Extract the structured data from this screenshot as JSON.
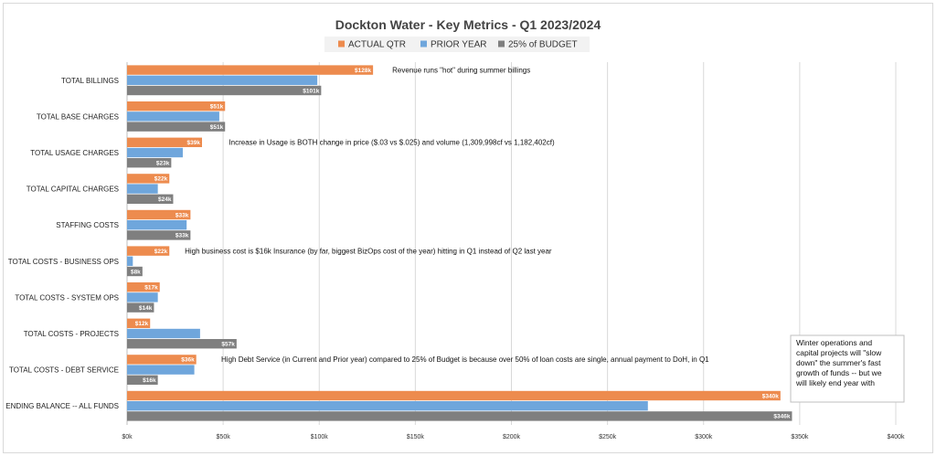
{
  "chart_data": {
    "type": "bar",
    "orientation": "horizontal",
    "title": "Dockton Water - Key Metrics - Q1 2023/2024",
    "legend_position": "top",
    "categories": [
      "TOTAL BILLINGS",
      "TOTAL BASE CHARGES",
      "TOTAL USAGE CHARGES",
      "TOTAL CAPITAL CHARGES",
      "STAFFING COSTS",
      "TOTAL COSTS - BUSINESS OPS",
      "TOTAL COSTS - SYSTEM OPS",
      "TOTAL COSTS - PROJECTS",
      "TOTAL COSTS - DEBT SERVICE",
      "ENDING BALANCE -- ALL FUNDS"
    ],
    "series": [
      {
        "name": "ACTUAL QTR",
        "color": "#ED8B4E",
        "values": [
          128000,
          51000,
          39000,
          22000,
          33000,
          22000,
          17000,
          12000,
          36000,
          340000
        ],
        "labels": [
          "$128k",
          "$51k",
          "$39k",
          "$22k",
          "$33k",
          "$22k",
          "$17k",
          "$12k",
          "$36k",
          "$340k"
        ]
      },
      {
        "name": "PRIOR YEAR",
        "color": "#6FA6DC",
        "values": [
          99000,
          48000,
          29000,
          16000,
          31000,
          3000,
          16000,
          38000,
          35000,
          271000
        ],
        "labels": []
      },
      {
        "name": "25% of BUDGET",
        "color": "#7F7F7F",
        "values": [
          101000,
          51000,
          23000,
          24000,
          33000,
          8000,
          14000,
          57000,
          16000,
          346000
        ],
        "labels": [
          "$101k",
          "$51k",
          "$23k",
          "$24k",
          "$33k",
          "$8k",
          "$14k",
          "$57k",
          "$16k",
          "$346k"
        ]
      }
    ],
    "xlim": [
      0,
      400000
    ],
    "x_ticks": [
      0,
      50000,
      100000,
      150000,
      200000,
      250000,
      300000,
      350000,
      400000
    ],
    "x_tick_labels": [
      "$0k",
      "$50k",
      "$100k",
      "$150k",
      "$200k",
      "$250k",
      "$300k",
      "$350k",
      "$400k"
    ],
    "grid": true,
    "annotations": [
      {
        "category_index": 0,
        "x_value": 138000,
        "text": "Revenue runs \"hot\" during summer billings"
      },
      {
        "category_index": 2,
        "x_value": 53000,
        "text": "Increase in Usage is BOTH change in price ($.03 vs $.025) and volume (1,309,998cf vs 1,182,402cf)"
      },
      {
        "category_index": 5,
        "x_value": 30000,
        "text": "High business cost is $16k Insurance (by far, biggest BizOps cost of the year) hitting in Q1 instead of Q2 last year"
      },
      {
        "category_index": 8,
        "x_value": 49000,
        "text": "High Debt Service (in Current and Prior year) compared to 25% of Budget is because over 50% of loan costs are single, annual payment to DoH, in Q1"
      }
    ],
    "note_box": {
      "lines": [
        "Winter operations and",
        "capital projects will \"slow",
        "down\" the summer's fast",
        "growth of funds -- but we",
        "will likely end year with"
      ]
    }
  }
}
